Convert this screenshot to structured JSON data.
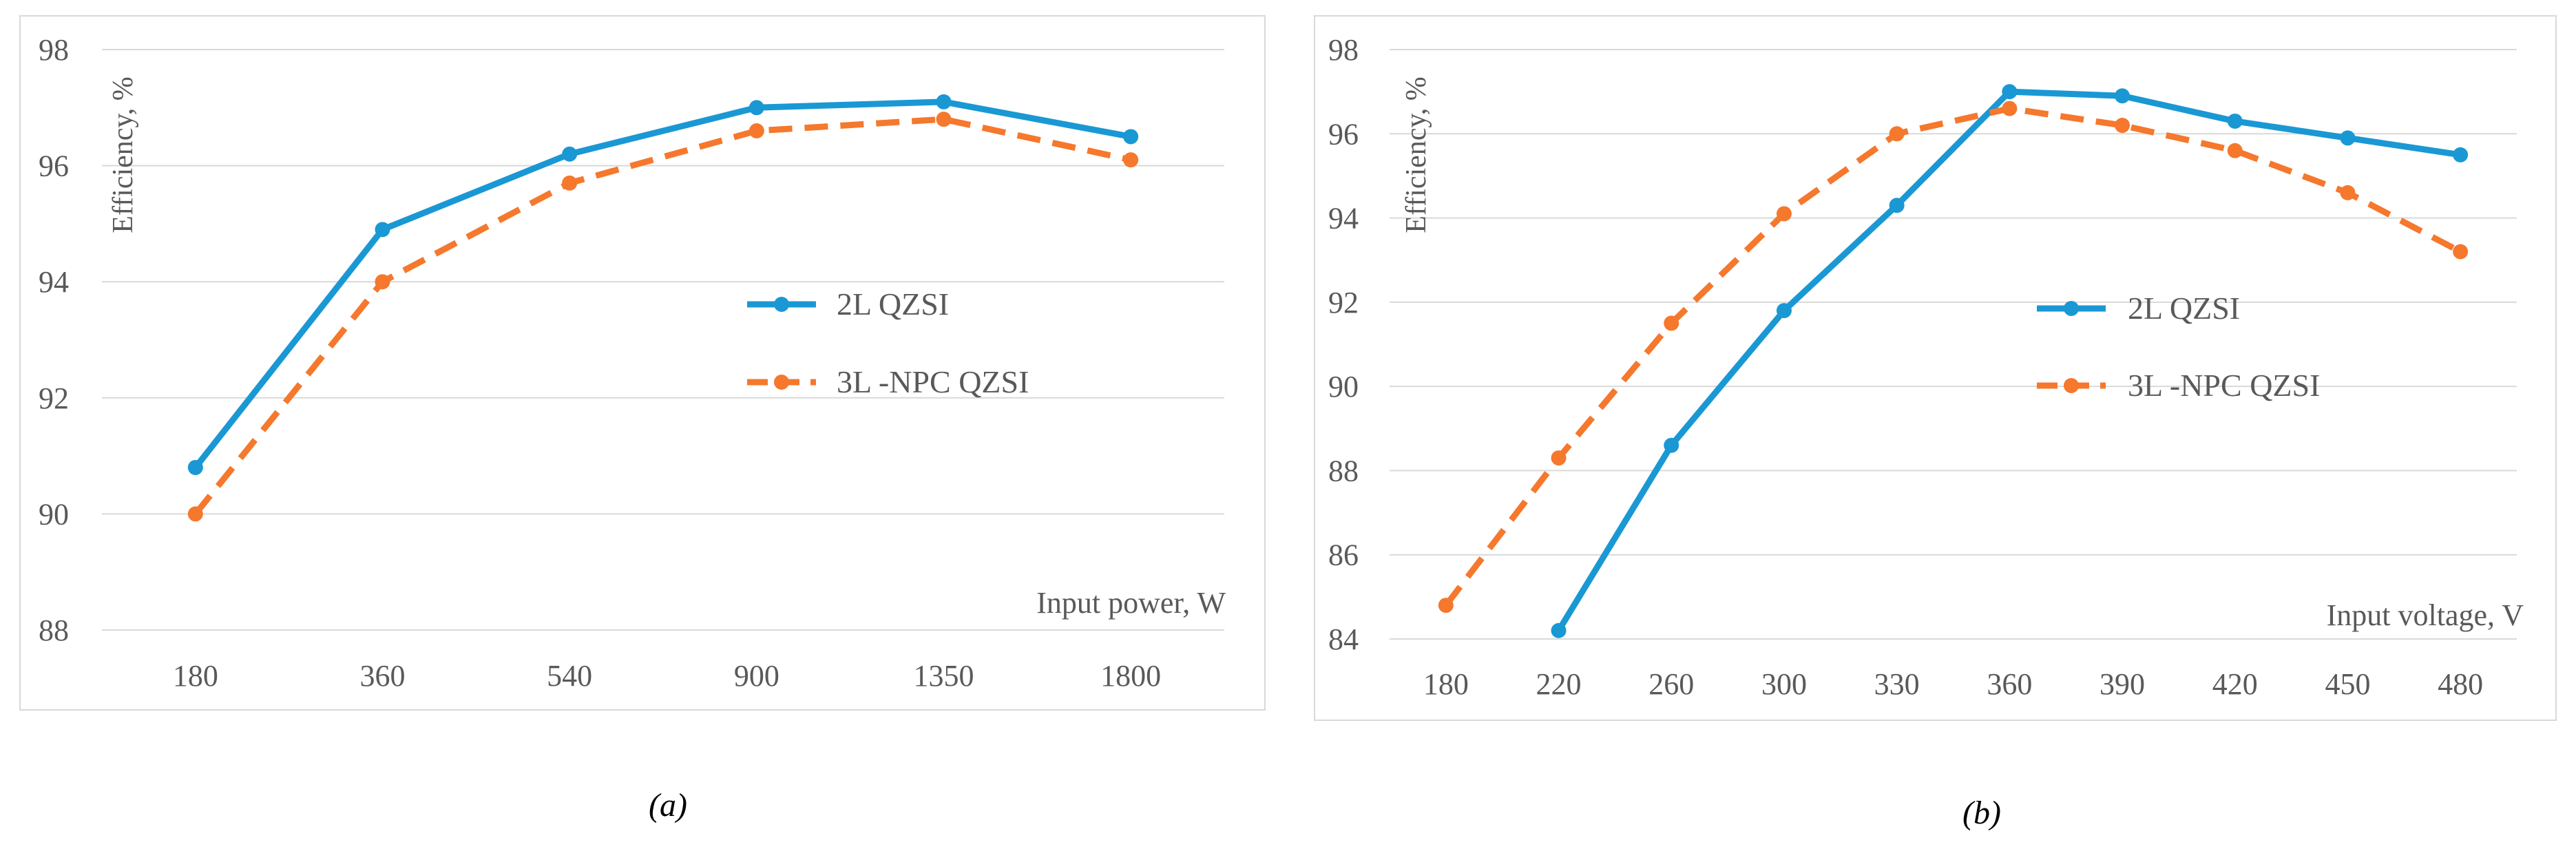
{
  "chart_data": [
    {
      "panel": "a",
      "type": "line",
      "caption": "(a)",
      "categories": [
        "180",
        "360",
        "540",
        "900",
        "1350",
        "1800"
      ],
      "xlabel": "Input power, W",
      "ylabel": "Efficiency, %",
      "ylim": [
        88,
        98
      ],
      "yticks": [
        "88",
        "90",
        "92",
        "94",
        "96",
        "98"
      ],
      "grid": true,
      "legend_position": "center-right",
      "series": [
        {
          "name": "2L  QZSI",
          "color": "#1a98d4",
          "dash": false,
          "values": [
            90.8,
            94.9,
            96.2,
            97.0,
            97.1,
            96.5
          ]
        },
        {
          "name": "3L -NPC QZSI",
          "color": "#f5782d",
          "dash": true,
          "values": [
            90.0,
            94.0,
            95.7,
            96.6,
            96.8,
            96.1
          ]
        }
      ]
    },
    {
      "panel": "b",
      "type": "line",
      "caption": "(b)",
      "categories": [
        "180",
        "220",
        "260",
        "300",
        "330",
        "360",
        "390",
        "420",
        "450",
        "480"
      ],
      "xlabel": "Input voltage,  V",
      "ylabel": "Efficiency, %",
      "ylim": [
        84,
        98
      ],
      "yticks": [
        "84",
        "86",
        "88",
        "90",
        "92",
        "94",
        "96",
        "98"
      ],
      "grid": true,
      "legend_position": "center-right",
      "series": [
        {
          "name": "2L  QZSI",
          "color": "#1a98d4",
          "dash": false,
          "values": [
            null,
            84.2,
            88.6,
            91.8,
            94.3,
            97.0,
            96.9,
            96.3,
            95.9,
            95.5
          ]
        },
        {
          "name": "3L -NPC QZSI",
          "color": "#f5782d",
          "dash": true,
          "values": [
            84.8,
            88.3,
            91.5,
            94.1,
            96.0,
            96.6,
            96.2,
            95.6,
            94.6,
            93.2
          ]
        }
      ]
    }
  ]
}
